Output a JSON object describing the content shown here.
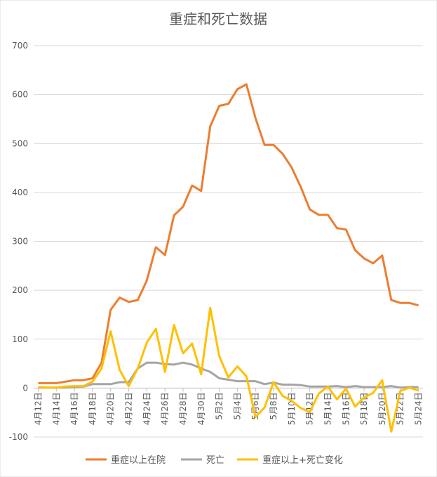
{
  "chart_data": {
    "type": "line",
    "title": "重症和死亡数据",
    "xlabel": "",
    "ylabel": "",
    "ylim": [
      -100,
      700
    ],
    "yticks": [
      -100,
      0,
      100,
      200,
      300,
      400,
      500,
      600,
      700
    ],
    "grid": true,
    "legend": "bottom",
    "x": [
      "4月12日",
      "4月13日",
      "4月14日",
      "4月15日",
      "4月16日",
      "4月17日",
      "4月18日",
      "4月19日",
      "4月20日",
      "4月21日",
      "4月22日",
      "4月23日",
      "4月24日",
      "4月25日",
      "4月26日",
      "4月27日",
      "4月28日",
      "4月29日",
      "4月30日",
      "5月1日",
      "5月2日",
      "5月3日",
      "5月4日",
      "5月5日",
      "5月6日",
      "5月7日",
      "5月8日",
      "5月9日",
      "5月10日",
      "5月11日",
      "5月12日",
      "5月13日",
      "5月14日",
      "5月15日",
      "5月16日",
      "5月17日",
      "5月18日",
      "5月19日",
      "5月20日",
      "5月21日",
      "5月22日",
      "5月23日",
      "5月24日"
    ],
    "xtick_labels": [
      "4月12日",
      "4月14日",
      "4月16日",
      "4月18日",
      "4月20日",
      "4月22日",
      "4月24日",
      "4月26日",
      "4月28日",
      "4月30日",
      "5月2日",
      "5月4日",
      "5月6日",
      "5月8日",
      "5月10日",
      "5月12日",
      "5月14日",
      "5月16日",
      "5月18日",
      "5月20日",
      "5月22日",
      "5月24日"
    ],
    "series": [
      {
        "name": "重症以上在院",
        "color": "#ED7D31",
        "values": [
          10,
          10,
          10,
          13,
          16,
          16,
          20,
          52,
          160,
          185,
          176,
          180,
          220,
          288,
          272,
          353,
          371,
          414,
          403,
          535,
          577,
          581,
          611,
          621,
          552,
          497,
          497,
          479,
          451,
          411,
          365,
          354,
          354,
          327,
          324,
          282,
          265,
          255,
          271,
          180,
          174,
          174,
          169
        ]
      },
      {
        "name": "死亡",
        "color": "#A5A5A5",
        "values": [
          1,
          1,
          1,
          1,
          2,
          3,
          8,
          8,
          8,
          12,
          12,
          40,
          52,
          52,
          49,
          48,
          52,
          48,
          40,
          33,
          20,
          17,
          14,
          14,
          14,
          8,
          11,
          7,
          7,
          6,
          3,
          3,
          3,
          4,
          2,
          4,
          2,
          2,
          2,
          4,
          1,
          2,
          2
        ]
      },
      {
        "name": "重症以上+死亡变化",
        "color": "#FFC000",
        "values": [
          2,
          1,
          1,
          3,
          4,
          4,
          13,
          40,
          116,
          37,
          4,
          40,
          93,
          121,
          33,
          129,
          71,
          91,
          28,
          164,
          65,
          22,
          44,
          24,
          -59,
          -40,
          12,
          -16,
          -26,
          -41,
          -49,
          -11,
          3,
          -23,
          -1,
          -38,
          -19,
          -10,
          16,
          -89,
          -6,
          1,
          -5
        ]
      }
    ]
  }
}
